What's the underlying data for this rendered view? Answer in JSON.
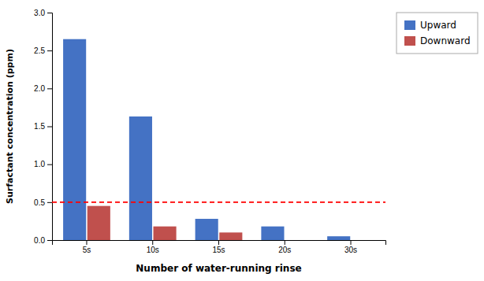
{
  "chart_data": {
    "type": "bar",
    "categories": [
      "5s",
      "10s",
      "15s",
      "20s",
      "30s"
    ],
    "series": [
      {
        "name": "Upward",
        "color": "#4472C4",
        "values": [
          2.65,
          1.63,
          0.28,
          0.18,
          0.05
        ]
      },
      {
        "name": "Downward",
        "color": "#C0504D",
        "values": [
          0.45,
          0.18,
          0.1,
          0.0,
          0.0
        ]
      }
    ],
    "hline": {
      "y": 0.5,
      "color": "#FF0000",
      "line_style": "dashed"
    },
    "xlabel": "Number of water-running rinse",
    "ylabel": "Surfactant concentration (ppm)",
    "ylim": [
      0,
      3
    ],
    "yticks": [
      {
        "value": 0,
        "label": "0.0"
      },
      0.5,
      {
        "value": 1,
        "label": "1.0"
      },
      {
        "value": 1.5,
        "label": "1.5"
      },
      {
        "value": 2,
        "label": "2.0"
      },
      2.5,
      {
        "value": 3,
        "label": "3.0"
      }
    ],
    "legend": "right",
    "grid": false
  }
}
